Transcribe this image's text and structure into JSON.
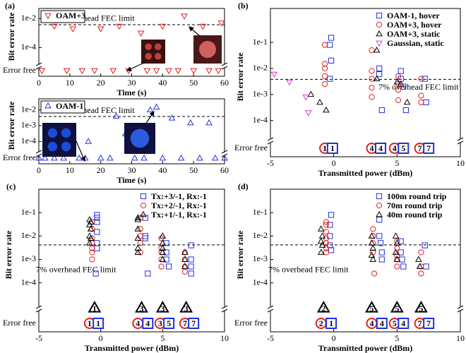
{
  "chart_data": [
    {
      "type": "scatter",
      "panel_label": "(a)",
      "xlabel": "Time (s)",
      "ylabel": "Bit error rate",
      "log_y": true,
      "xlim": [
        0,
        60
      ],
      "xticks": [
        0,
        10,
        20,
        30,
        40,
        50,
        60
      ],
      "ylim": [
        1e-05,
        0.05
      ],
      "yticks": [
        {
          "value": 0.01,
          "label": "1e-2"
        },
        {
          "value": 0.0001,
          "label": "1e-4"
        }
      ],
      "error_free_label": "Error free",
      "fec_limit": 0.0038,
      "fec_label": "7% overhead FEC limit",
      "legend": "upper left",
      "series": [
        {
          "name": "OAM+3",
          "color": "#e02020",
          "marker": "triangle-down",
          "x": [
            5,
            11,
            20,
            26,
            33,
            40,
            47,
            53,
            59
          ],
          "values": [
            0.003,
            0.002,
            0.002,
            0.003,
            0.001,
            0.003,
            0.015,
            0.003,
            0.005
          ],
          "error_free_x": [
            1,
            9,
            14,
            18,
            24,
            29,
            35,
            38,
            42,
            45,
            50,
            55,
            58
          ]
        }
      ]
    },
    {
      "type": "scatter",
      "xlabel": "Time (s)",
      "ylabel": "Bit error rate",
      "log_y": true,
      "xlim": [
        0,
        60
      ],
      "xticks": [
        0,
        10,
        20,
        30,
        40,
        50,
        60
      ],
      "ylim": [
        3e-05,
        0.05
      ],
      "yticks": [
        {
          "value": 0.01,
          "label": "1e-2"
        },
        {
          "value": 0.001,
          "label": "1e-3"
        },
        {
          "value": 0.0001,
          "label": "1e-4"
        }
      ],
      "error_free_label": "Error free",
      "fec_limit": 0.0038,
      "fec_label": "7% overhead FEC limit",
      "legend": "upper left",
      "series": [
        {
          "name": "OAM-1",
          "color": "#2030e0",
          "marker": "triangle",
          "x": [
            16,
            25,
            28,
            36,
            38,
            43,
            49,
            55
          ],
          "values": [
            0.0001,
            0.004,
            0.0003,
            0.01,
            0.015,
            0.003,
            0.0015,
            0.0015
          ],
          "error_free_x": [
            0,
            2,
            5,
            8,
            13,
            15,
            20,
            23,
            31,
            34,
            40,
            46,
            52,
            57,
            60
          ]
        }
      ]
    },
    {
      "type": "scatter",
      "panel_label": "(b)",
      "xlabel": "Transmitted power (dBm)",
      "ylabel": "Bit error rate",
      "log_y": true,
      "xlim": [
        -5,
        10
      ],
      "xticks": [
        -5,
        0,
        5,
        10
      ],
      "ylim": [
        3e-05,
        2
      ],
      "yticks": [
        {
          "value": 0.1,
          "label": "1e-1"
        },
        {
          "value": 0.01,
          "label": "1e-2"
        },
        {
          "value": 0.001,
          "label": "1e-3"
        },
        {
          "value": 0.0001,
          "label": "1e-4"
        }
      ],
      "error_free_label": "Error free",
      "fec_limit": 0.0038,
      "fec_label": "7% overhead FEC limit",
      "legend": "upper right",
      "series": [
        {
          "name": "OAM-1, hover",
          "color": "#2030e0",
          "marker": "square",
          "x": [
            -0.2,
            -0.3,
            -0.2,
            -0.3,
            3.6,
            3.6,
            3.8,
            5.3,
            5.3,
            5.5,
            5.7,
            7.2,
            7.3
          ],
          "values": [
            0.15,
            0.08,
            0.02,
            0.004,
            0.01,
            0.006,
            0.00025,
            0.008,
            0.004,
            0.002,
            0.00025,
            0.004,
            0.0005
          ]
        },
        {
          "name": "OAM+3, hover",
          "color": "#e02020",
          "marker": "circle",
          "x": [
            -0.7,
            -0.7,
            -0.7,
            -0.7,
            -0.7,
            3.0,
            3.0,
            3.0,
            3.0,
            3.0,
            5.1,
            5.1,
            5.1,
            5.1,
            6.9,
            6.9,
            6.9
          ],
          "values": [
            0.08,
            0.015,
            0.01,
            0.005,
            0.0025,
            0.05,
            0.008,
            0.004,
            0.0018,
            0.0008,
            0.005,
            0.0025,
            0.0015,
            0.0006,
            0.004,
            0.0009,
            0.0005
          ]
        },
        {
          "name": "OAM+3, static",
          "color": "#000000",
          "marker": "triangle",
          "x": [
            -1.8,
            -1.1,
            -0.6,
            3.4,
            3.4,
            5.0,
            5.3,
            5.8
          ],
          "values": [
            0.001,
            0.0005,
            0.00025,
            0.05,
            0.004,
            0.003,
            0.0025,
            0.0005
          ]
        },
        {
          "name": "Gaussian, static",
          "color": "#d040d0",
          "marker": "triangle-down",
          "x": [
            -4.7,
            -3.5,
            -2.2,
            -2.0
          ],
          "values": [
            0.006,
            0.003,
            0.0008,
            0.0002
          ]
        }
      ],
      "error_free": [
        {
          "series": 1,
          "x": -0.7,
          "count": 1
        },
        {
          "series": 0,
          "x": -0.1,
          "count": 1
        },
        {
          "series": 1,
          "x": 3.0,
          "count": 4
        },
        {
          "series": 0,
          "x": 3.7,
          "count": 4
        },
        {
          "series": 1,
          "x": 4.8,
          "count": 4
        },
        {
          "series": 0,
          "x": 5.5,
          "count": 5
        },
        {
          "series": 1,
          "x": 6.8,
          "count": 7
        },
        {
          "series": 0,
          "x": 7.5,
          "count": 7
        }
      ]
    },
    {
      "type": "scatter",
      "panel_label": "(c)",
      "xlabel": "Transmitted power (dBm)",
      "ylabel": "Bit error rate",
      "log_y": true,
      "xlim": [
        -5,
        10
      ],
      "xticks": [
        -5,
        0,
        5,
        10
      ],
      "ylim": [
        3e-05,
        1
      ],
      "yticks": [
        {
          "value": 0.1,
          "label": "1e-1"
        },
        {
          "value": 0.01,
          "label": "1e-2"
        },
        {
          "value": 0.001,
          "label": "1e-3"
        },
        {
          "value": 0.0001,
          "label": "1e-4"
        }
      ],
      "error_free_label": "Error free",
      "fec_limit": 0.0042,
      "fec_label": "7% overhead FEC limit",
      "legend": "upper right",
      "series": [
        {
          "name": "Tx:+3/-1, Rx:-1",
          "color": "#2030e0",
          "marker": "square",
          "x": [
            -0.3,
            -0.3,
            -0.3,
            -0.3,
            -0.3,
            -0.3,
            -0.4,
            3.6,
            3.6,
            3.6,
            3.8,
            5.3,
            5.3,
            5.3,
            5.5,
            7.3,
            7.3,
            7.3,
            7.3
          ],
          "values": [
            0.08,
            0.06,
            0.04,
            0.015,
            0.005,
            0.003,
            0.00025,
            0.06,
            0.01,
            0.008,
            0.00025,
            0.005,
            0.002,
            0.001,
            0.0005,
            0.004,
            0.001,
            0.0005,
            0.00025
          ]
        },
        {
          "name": "Tx:+2/-1, Rx:-1",
          "color": "#e02020",
          "marker": "circle",
          "x": [
            -0.7,
            -0.7,
            -0.7,
            -0.7,
            -0.7,
            -0.7,
            -0.7,
            3.2,
            3.2,
            3.2,
            3.2,
            3.2,
            4.9,
            4.9,
            4.9,
            4.9,
            4.9,
            6.8,
            6.8,
            6.8,
            6.8
          ],
          "values": [
            0.04,
            0.02,
            0.008,
            0.005,
            0.003,
            0.002,
            0.001,
            0.06,
            0.02,
            0.01,
            0.005,
            0.002,
            0.008,
            0.003,
            0.002,
            0.001,
            0.0005,
            0.002,
            0.001,
            0.0005,
            0.0003
          ]
        },
        {
          "name": "Tx:+1/-1, Rx:-1",
          "color": "#000000",
          "marker": "triangle",
          "x": [
            -0.9,
            -0.8,
            -0.9,
            -0.8,
            -0.9,
            -0.8,
            -0.9,
            3.0,
            3.0,
            3.0,
            3.0,
            3.0,
            3.0,
            5.0,
            5.0,
            5.0,
            5.0,
            5.0,
            6.8,
            6.8,
            6.8
          ],
          "values": [
            0.05,
            0.04,
            0.03,
            0.02,
            0.01,
            0.008,
            0.005,
            0.06,
            0.05,
            0.02,
            0.008,
            0.003,
            0.002,
            0.01,
            0.005,
            0.003,
            0.002,
            0.001,
            0.002,
            0.001,
            0.0005
          ]
        }
      ],
      "error_free": [
        {
          "series": 2,
          "x": -0.5,
          "count": 1
        },
        {
          "series": 2,
          "x": 3.3,
          "count": 3
        },
        {
          "series": 2,
          "x": 5.0,
          "count": 3
        },
        {
          "series": 2,
          "x": 6.9,
          "count": 3
        },
        {
          "series": 1,
          "x": -0.9,
          "count": 1
        },
        {
          "series": 0,
          "x": -0.2,
          "count": 1
        },
        {
          "series": 1,
          "x": 3.0,
          "count": 4
        },
        {
          "series": 0,
          "x": 3.8,
          "count": 4
        },
        {
          "series": 1,
          "x": 4.8,
          "count": 3
        },
        {
          "series": 0,
          "x": 5.5,
          "count": 5
        },
        {
          "series": 1,
          "x": 6.8,
          "count": 7
        },
        {
          "series": 0,
          "x": 7.5,
          "count": 7
        }
      ]
    },
    {
      "type": "scatter",
      "panel_label": "(d)",
      "xlabel": "Transmitted power (dBm)",
      "ylabel": "Bit error rate",
      "log_y": true,
      "xlim": [
        -5,
        10
      ],
      "xticks": [
        -5,
        0,
        5,
        10
      ],
      "ylim": [
        3e-05,
        1
      ],
      "yticks": [
        {
          "value": 0.1,
          "label": "1e-1"
        },
        {
          "value": 0.01,
          "label": "1e-2"
        },
        {
          "value": 0.001,
          "label": "1e-3"
        },
        {
          "value": 0.0001,
          "label": "1e-4"
        }
      ],
      "error_free_label": "Error free",
      "fec_limit": 0.0042,
      "fec_label": "7% overhead FEC limit",
      "legend": "upper right",
      "series": [
        {
          "name": "100m round trip",
          "color": "#2030e0",
          "marker": "square",
          "x": [
            -0.2,
            -0.3,
            -0.3,
            -0.3,
            -0.2,
            3.6,
            3.6,
            3.7,
            3.8,
            3.8,
            5.3,
            5.3,
            5.4,
            5.5,
            7.2,
            7.3
          ],
          "values": [
            0.08,
            0.03,
            0.01,
            0.004,
            0.0025,
            0.05,
            0.01,
            0.005,
            0.002,
            0.001,
            0.006,
            0.002,
            0.001,
            0.0005,
            0.004,
            0.0005
          ]
        },
        {
          "name": "70m round trip",
          "color": "#e02020",
          "marker": "circle",
          "x": [
            -0.6,
            -0.6,
            -0.6,
            -0.6,
            -0.6,
            -0.6,
            -0.6,
            3.1,
            3.1,
            3.1,
            3.1,
            3.2,
            5.0,
            5.0,
            5.0,
            5.0,
            5.0,
            6.9,
            6.9,
            6.9
          ],
          "values": [
            0.04,
            0.03,
            0.015,
            0.008,
            0.005,
            0.003,
            0.002,
            0.02,
            0.01,
            0.005,
            0.002,
            0.00025,
            0.006,
            0.003,
            0.0015,
            0.001,
            0.0005,
            0.002,
            0.0005,
            0.00025
          ]
        },
        {
          "name": "40m round trip",
          "color": "#000000",
          "marker": "triangle",
          "x": [
            -1.0,
            -0.9,
            -1.0,
            -0.9,
            -1.0,
            3.0,
            3.0,
            3.1,
            3.0,
            3.1,
            4.9,
            5.0,
            4.9,
            5.0,
            6.7,
            6.8
          ],
          "values": [
            0.02,
            0.01,
            0.006,
            0.004,
            0.002,
            0.01,
            0.005,
            0.003,
            0.0015,
            0.001,
            0.01,
            0.005,
            0.002,
            0.001,
            0.001,
            0.0005
          ]
        }
      ],
      "error_free": [
        {
          "series": 2,
          "x": -0.8,
          "count": 2
        },
        {
          "series": 2,
          "x": 3.0,
          "count": 5
        },
        {
          "series": 2,
          "x": 5.0,
          "count": 5
        },
        {
          "series": 2,
          "x": 6.9,
          "count": 5
        },
        {
          "series": 1,
          "x": -1.0,
          "count": 2
        },
        {
          "series": 0,
          "x": -0.2,
          "count": 1
        },
        {
          "series": 1,
          "x": 3.0,
          "count": 4
        },
        {
          "series": 0,
          "x": 3.8,
          "count": 4
        },
        {
          "series": 1,
          "x": 4.8,
          "count": 5
        },
        {
          "series": 0,
          "x": 5.5,
          "count": 4
        },
        {
          "series": 1,
          "x": 6.8,
          "count": 7
        },
        {
          "series": 0,
          "x": 7.5,
          "count": 7
        }
      ]
    }
  ]
}
